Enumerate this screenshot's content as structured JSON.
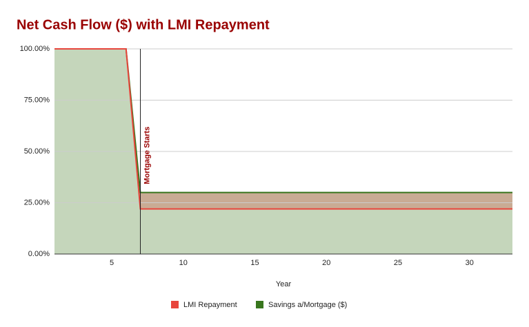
{
  "chart_data": {
    "type": "area",
    "title": "Net Cash Flow ($) with LMI Repayment",
    "xlabel": "Year",
    "x": [
      1,
      2,
      3,
      4,
      5,
      6,
      7,
      8,
      9,
      10,
      11,
      12,
      13,
      14,
      15,
      16,
      17,
      18,
      19,
      20,
      21,
      22,
      23,
      24,
      25,
      26,
      27,
      28,
      29,
      30,
      31,
      32,
      33
    ],
    "series": [
      {
        "name": "LMI Repayment",
        "color": "#e8453c",
        "values": [
          100,
          100,
          100,
          100,
          100,
          100,
          22,
          22,
          22,
          22,
          22,
          22,
          22,
          22,
          22,
          22,
          22,
          22,
          22,
          22,
          22,
          22,
          22,
          22,
          22,
          22,
          22,
          22,
          22,
          22,
          22,
          22,
          22
        ]
      },
      {
        "name": "Savings a/Mortgage ($)",
        "color": "#38761d",
        "values": [
          100,
          100,
          100,
          100,
          100,
          100,
          30,
          30,
          30,
          30,
          30,
          30,
          30,
          30,
          30,
          30,
          30,
          30,
          30,
          30,
          30,
          30,
          30,
          30,
          30,
          30,
          30,
          30,
          30,
          30,
          30,
          30,
          30
        ]
      }
    ],
    "xlim": [
      1,
      33
    ],
    "xticks": [
      5,
      10,
      15,
      20,
      25,
      30
    ],
    "ylim": [
      0,
      100
    ],
    "yticks": [
      {
        "value": 0,
        "label": "0.00%"
      },
      {
        "value": 25,
        "label": "25.00%"
      },
      {
        "value": 50,
        "label": "50.00%"
      },
      {
        "value": 75,
        "label": "75.00%"
      },
      {
        "value": 100,
        "label": "100.00%"
      }
    ],
    "grid": true,
    "legend": "bottom",
    "annotation": {
      "x": 7,
      "text": "Mortgage Starts"
    }
  }
}
